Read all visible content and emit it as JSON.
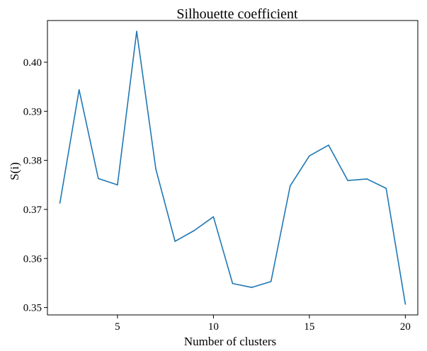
{
  "chart_data": {
    "type": "line",
    "title": "Silhouette coefficient",
    "xlabel": "Number of clusters",
    "ylabel": "S(i)",
    "xlim": [
      1.35,
      20.65
    ],
    "ylim": [
      0.3485,
      0.4085
    ],
    "xticks": [
      5,
      10,
      15,
      20
    ],
    "xtick_labels": [
      "5",
      "10",
      "15",
      "20"
    ],
    "yticks": [
      0.35,
      0.36,
      0.37,
      0.38,
      0.39,
      0.4
    ],
    "ytick_labels": [
      "0.35",
      "0.36",
      "0.37",
      "0.38",
      "0.39",
      "0.40"
    ],
    "grid": false,
    "series": [
      {
        "color": "#1f77b4",
        "x": [
          2,
          3,
          4,
          5,
          6,
          7,
          8,
          9,
          10,
          11,
          12,
          13,
          14,
          15,
          16,
          17,
          18,
          19,
          20
        ],
        "values": [
          0.3713,
          0.3944,
          0.3763,
          0.375,
          0.4063,
          0.3782,
          0.3635,
          0.3657,
          0.3685,
          0.3549,
          0.3541,
          0.3553,
          0.3748,
          0.3809,
          0.3831,
          0.3759,
          0.3762,
          0.3743,
          0.3507
        ]
      }
    ]
  }
}
